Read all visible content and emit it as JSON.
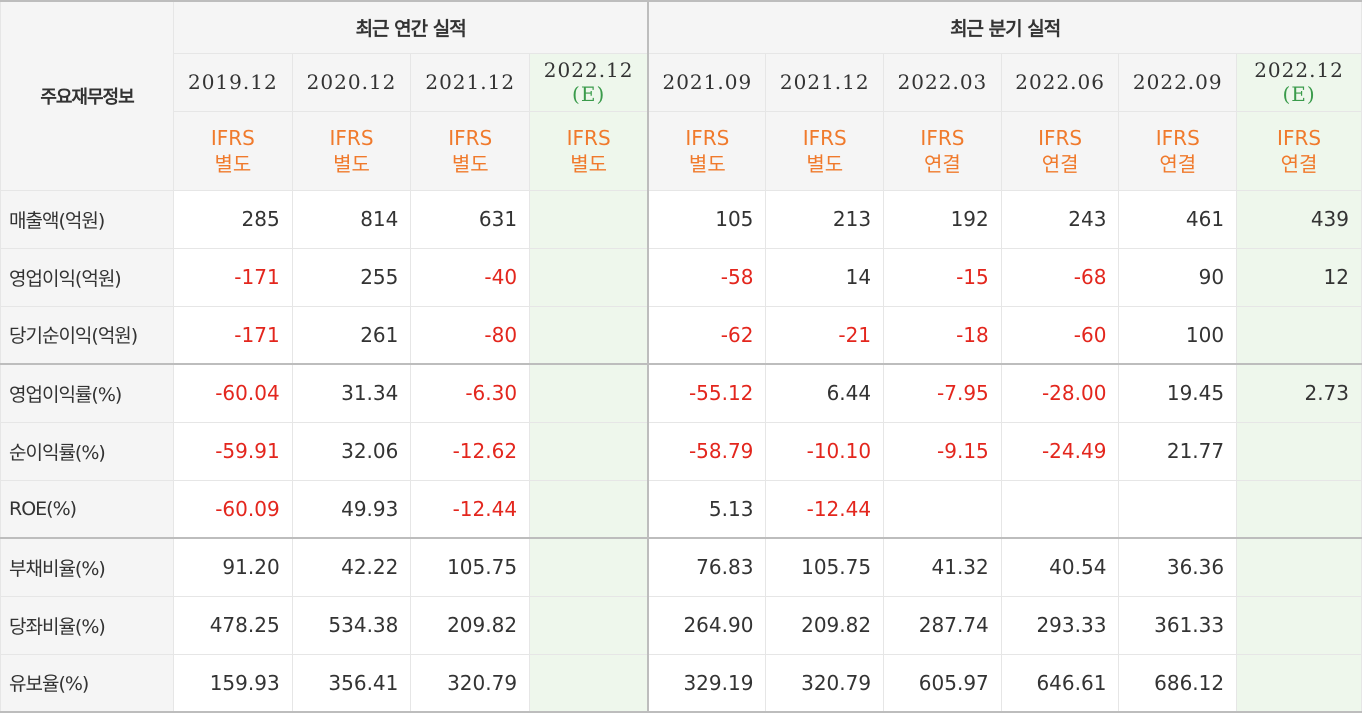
{
  "header": {
    "row_label": "주요재무정보",
    "annual_group": "최근 연간 실적",
    "quarter_group": "최근 분기 실적"
  },
  "periods": [
    {
      "date": "2019.12",
      "estimate": "",
      "std_top": "IFRS",
      "std_bottom": "별도"
    },
    {
      "date": "2020.12",
      "estimate": "",
      "std_top": "IFRS",
      "std_bottom": "별도"
    },
    {
      "date": "2021.12",
      "estimate": "",
      "std_top": "IFRS",
      "std_bottom": "별도"
    },
    {
      "date": "2022.12",
      "estimate": "(E)",
      "std_top": "IFRS",
      "std_bottom": "별도"
    },
    {
      "date": "2021.09",
      "estimate": "",
      "std_top": "IFRS",
      "std_bottom": "별도"
    },
    {
      "date": "2021.12",
      "estimate": "",
      "std_top": "IFRS",
      "std_bottom": "별도"
    },
    {
      "date": "2022.03",
      "estimate": "",
      "std_top": "IFRS",
      "std_bottom": "연결"
    },
    {
      "date": "2022.06",
      "estimate": "",
      "std_top": "IFRS",
      "std_bottom": "연결"
    },
    {
      "date": "2022.09",
      "estimate": "",
      "std_top": "IFRS",
      "std_bottom": "연결"
    },
    {
      "date": "2022.12",
      "estimate": "(E)",
      "std_top": "IFRS",
      "std_bottom": "연결"
    }
  ],
  "rows": [
    {
      "label": "매출액(억원)",
      "values": [
        "285",
        "814",
        "631",
        "",
        "105",
        "213",
        "192",
        "243",
        "461",
        "439"
      ]
    },
    {
      "label": "영업이익(억원)",
      "values": [
        "-171",
        "255",
        "-40",
        "",
        "-58",
        "14",
        "-15",
        "-68",
        "90",
        "12"
      ]
    },
    {
      "label": "당기순이익(억원)",
      "values": [
        "-171",
        "261",
        "-80",
        "",
        "-62",
        "-21",
        "-18",
        "-60",
        "100",
        ""
      ]
    },
    {
      "label": "영업이익률(%)",
      "values": [
        "-60.04",
        "31.34",
        "-6.30",
        "",
        "-55.12",
        "6.44",
        "-7.95",
        "-28.00",
        "19.45",
        "2.73"
      ]
    },
    {
      "label": "순이익률(%)",
      "values": [
        "-59.91",
        "32.06",
        "-12.62",
        "",
        "-58.79",
        "-10.10",
        "-9.15",
        "-24.49",
        "21.77",
        ""
      ]
    },
    {
      "label": "ROE(%)",
      "values": [
        "-60.09",
        "49.93",
        "-12.44",
        "",
        "5.13",
        "-12.44",
        "",
        "",
        "",
        ""
      ]
    },
    {
      "label": "부채비율(%)",
      "values": [
        "91.20",
        "42.22",
        "105.75",
        "",
        "76.83",
        "105.75",
        "41.32",
        "40.54",
        "36.36",
        ""
      ]
    },
    {
      "label": "당좌비율(%)",
      "values": [
        "478.25",
        "534.38",
        "209.82",
        "",
        "264.90",
        "209.82",
        "287.74",
        "293.33",
        "361.33",
        ""
      ]
    },
    {
      "label": "유보율(%)",
      "values": [
        "159.93",
        "356.41",
        "320.79",
        "",
        "329.19",
        "320.79",
        "605.97",
        "646.61",
        "686.12",
        ""
      ]
    }
  ],
  "colors": {
    "negative": "#e3261d",
    "standard": "#f07a2c",
    "estimate_bg": "#eef7ec",
    "estimate_text": "#3a9b4b",
    "header_bg": "#f5f5f5"
  }
}
